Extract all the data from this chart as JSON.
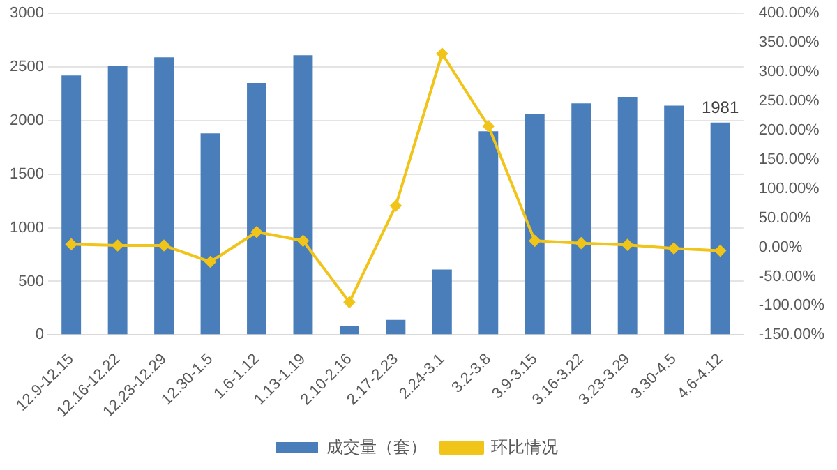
{
  "chart_data": {
    "type": "bar",
    "categories": [
      "12.9-12.15",
      "12.16-12.22",
      "12.23-12.29",
      "12.30-1.5",
      "1.6-1.12",
      "1.13-1.19",
      "2.10-2.16",
      "2.17-2.23",
      "2.24-3.1",
      "3.2-3.8",
      "3.9-3.15",
      "3.16-3.22",
      "3.23-3.29",
      "3.30-4.5",
      "4.6-4.12"
    ],
    "series": [
      {
        "name": "成交量（套）",
        "color": "#4a7ebb",
        "values": [
          2420,
          2510,
          2590,
          1880,
          2350,
          2610,
          80,
          140,
          610,
          1900,
          2060,
          2160,
          2220,
          2140,
          1981
        ],
        "value_labels": [
          null,
          null,
          null,
          null,
          null,
          null,
          null,
          null,
          null,
          null,
          null,
          null,
          null,
          null,
          "1981"
        ]
      },
      {
        "name": "环比情况",
        "type": "line",
        "axis": "y2",
        "color": "#f0c419",
        "marker": "diamond",
        "values": [
          5,
          3,
          3,
          -25,
          26,
          11,
          -94,
          71,
          331,
          207,
          11,
          7,
          4,
          -2,
          -6
        ]
      }
    ],
    "ylim": [
      0,
      3000
    ],
    "yticks": [
      0,
      500,
      1000,
      1500,
      2000,
      2500,
      3000
    ],
    "y2lim": [
      -150,
      400
    ],
    "y2ticks": [
      {
        "value": -150,
        "label": "-150.00%"
      },
      {
        "value": -100,
        "label": "-100.00%"
      },
      {
        "value": -50,
        "label": "-50.00%"
      },
      {
        "value": 0,
        "label": "0.00%"
      },
      {
        "value": 50,
        "label": "50.00%"
      },
      {
        "value": 100,
        "label": "100.00%"
      },
      {
        "value": 150,
        "label": "150.00%"
      },
      {
        "value": 200,
        "label": "200.00%"
      },
      {
        "value": 250,
        "label": "250.00%"
      },
      {
        "value": 300,
        "label": "300.00%"
      },
      {
        "value": 350,
        "label": "350.00%"
      },
      {
        "value": 400,
        "label": "400.00%"
      }
    ],
    "grid": "y",
    "legend": "bottom"
  }
}
